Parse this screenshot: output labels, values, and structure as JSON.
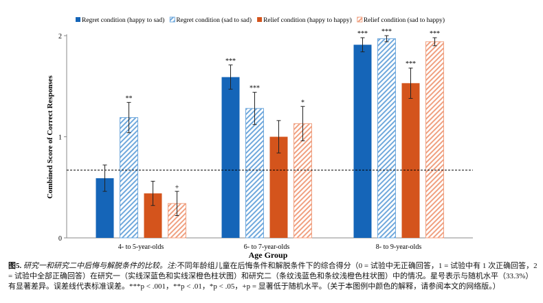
{
  "chart_data": {
    "type": "bar",
    "xlabel": "Age Group",
    "ylabel": "Combined Score of Correct Responses",
    "ylim": [
      0,
      2
    ],
    "yticks": [
      "0",
      "1",
      "2"
    ],
    "categories": [
      "4- to 5-year-olds",
      "6- to 7-year-olds",
      "8- to 9-year-olds"
    ],
    "chance_level": 0.67,
    "legend_position": "top",
    "series": [
      {
        "name": "Regret condition (happy to sad)",
        "color": "#1565b8",
        "hatched": false,
        "values": [
          0.59,
          1.59,
          1.91
        ],
        "errors": [
          0.13,
          0.12,
          0.07
        ],
        "sig": [
          "",
          "***",
          "***"
        ]
      },
      {
        "name": "Regret condition (sad to sad)",
        "color": "#6fa8dc",
        "hatched": true,
        "values": [
          1.19,
          1.28,
          1.97
        ],
        "errors": [
          0.15,
          0.16,
          0.03
        ],
        "sig": [
          "**",
          "***",
          "***"
        ]
      },
      {
        "name": "Relief condition (happy to happy)",
        "color": "#d4541c",
        "hatched": false,
        "values": [
          0.44,
          1.0,
          1.53
        ],
        "errors": [
          0.12,
          0.16,
          0.15
        ],
        "sig": [
          "",
          "",
          "***"
        ]
      },
      {
        "name": "Relief condition (sad to happy)",
        "color": "#f0a080",
        "hatched": true,
        "values": [
          0.34,
          1.13,
          1.94
        ],
        "errors": [
          0.12,
          0.17,
          0.04
        ],
        "sig": [
          "+",
          "*",
          "***"
        ]
      }
    ]
  },
  "caption": {
    "label": "图5.",
    "title": "研究一和研究二中后悔与解脱条件的比较。注:",
    "body": "不同年龄组儿童在后悔条件和解脱条件下的综合得分（0 = 试验中无正确回答，1 = 试验中有 1 次正确回答，2 = 试验中全部正确回答）在研究一（实线深蓝色和实线深橙色柱状图）和研究二（条纹浅蓝色和条纹浅橙色柱状图）中的情况。星号表示与随机水平（33.3%）有显著差异。误差线代表标准误差。***p < .001，**p < .01，*p < .05，+p = 显著低于随机水平。（关于本图例中颜色的解释，请参阅本文的网络版。）"
  }
}
